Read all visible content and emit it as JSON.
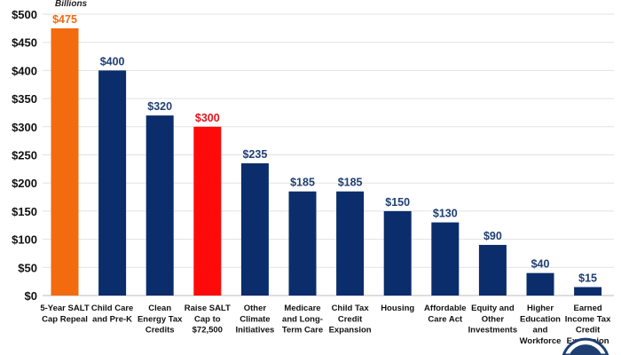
{
  "chart_data": {
    "type": "bar",
    "unit_label": "Billions",
    "categories": [
      [
        "5-Year SALT",
        "Cap Repeal"
      ],
      [
        "Child Care",
        "and Pre-K"
      ],
      [
        "Clean",
        "Energy Tax",
        "Credits"
      ],
      [
        "Raise SALT",
        "Cap to",
        "$72,500"
      ],
      [
        "Other",
        "Climate",
        "Initiatives"
      ],
      [
        "Medicare",
        "and Long-",
        "Term Care"
      ],
      [
        "Child Tax",
        "Credit",
        "Expansion"
      ],
      [
        "Housing"
      ],
      [
        "Affordable",
        "Care Act"
      ],
      [
        "Equity and",
        "Other",
        "Investments"
      ],
      [
        "Higher",
        "Education",
        "and",
        "Workforce"
      ],
      [
        "Earned",
        "Income Tax",
        "Credit",
        "Expansion"
      ]
    ],
    "values": [
      475,
      400,
      320,
      300,
      235,
      185,
      185,
      150,
      130,
      90,
      40,
      15
    ],
    "data_labels": [
      "$475",
      "$400",
      "$320",
      "$300",
      "$235",
      "$185",
      "$185",
      "$150",
      "$130",
      "$90",
      "$40",
      "$15"
    ],
    "bar_colors": [
      "#f26b0f",
      "#0b2d6b",
      "#0b2d6b",
      "#ff0a0a",
      "#0b2d6b",
      "#0b2d6b",
      "#0b2d6b",
      "#0b2d6b",
      "#0b2d6b",
      "#0b2d6b",
      "#0b2d6b",
      "#0b2d6b"
    ],
    "label_colors": [
      "#f26b0f",
      "#1f3f73",
      "#1f3f73",
      "#e5141b",
      "#1f3f73",
      "#1f3f73",
      "#1f3f73",
      "#1f3f73",
      "#1f3f73",
      "#1f3f73",
      "#1f3f73",
      "#1f3f73"
    ],
    "yticks": [
      "$0",
      "$50",
      "$100",
      "$150",
      "$200",
      "$250",
      "$300",
      "$350",
      "$400",
      "$450",
      "$500"
    ],
    "ylim": [
      0,
      500
    ],
    "grid": true
  }
}
